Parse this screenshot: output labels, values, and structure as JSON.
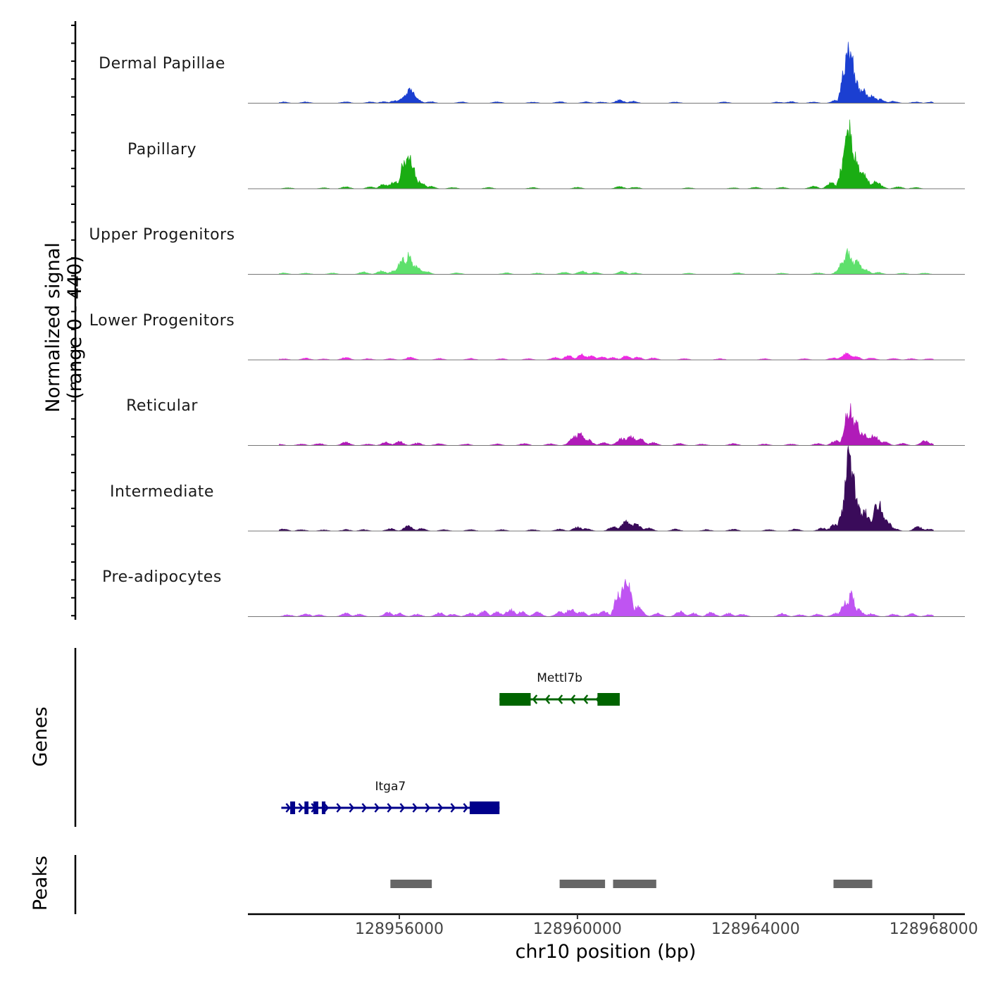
{
  "chart_data": {
    "type": "coverage",
    "region": {
      "chrom": "chr10",
      "start": 128952600,
      "end": 128968700
    },
    "y_axis_title_line1": "Normalized signal",
    "y_axis_title_line2": "(range 0 - 440)",
    "y_range": [
      0,
      440
    ],
    "x_axis_title": "chr10 position (bp)",
    "x_ticks": [
      128956000,
      128960000,
      128964000,
      128968000
    ],
    "x_tick_labels": [
      "128956000",
      "128960000",
      "128964000",
      "128968000"
    ],
    "tracks": [
      {
        "name": "Dermal Papillae",
        "color": "#1b3fd1",
        "peaks": [
          [
            128953400,
            5
          ],
          [
            128953900,
            5
          ],
          [
            128954800,
            6
          ],
          [
            128955350,
            5
          ],
          [
            128955650,
            6
          ],
          [
            128955900,
            10
          ],
          [
            128956050,
            16
          ],
          [
            128956200,
            38
          ],
          [
            128956250,
            55
          ],
          [
            128956400,
            15
          ],
          [
            128956700,
            6
          ],
          [
            128957400,
            5
          ],
          [
            128958200,
            6
          ],
          [
            128959000,
            5
          ],
          [
            128959600,
            6
          ],
          [
            128960200,
            6
          ],
          [
            128960550,
            5
          ],
          [
            128960950,
            14
          ],
          [
            128961250,
            8
          ],
          [
            128962200,
            5
          ],
          [
            128963300,
            5
          ],
          [
            128964500,
            5
          ],
          [
            128964800,
            6
          ],
          [
            128965300,
            5
          ],
          [
            128965800,
            12
          ],
          [
            128966000,
            160
          ],
          [
            128966080,
            260
          ],
          [
            128966150,
            200
          ],
          [
            128966250,
            110
          ],
          [
            128966400,
            55
          ],
          [
            128966600,
            30
          ],
          [
            128966800,
            16
          ],
          [
            128967100,
            8
          ],
          [
            128967600,
            5
          ],
          [
            128967950,
            5
          ]
        ]
      },
      {
        "name": "Papillary",
        "color": "#1aad13",
        "peaks": [
          [
            128953500,
            4
          ],
          [
            128954300,
            4
          ],
          [
            128954800,
            8
          ],
          [
            128955350,
            7
          ],
          [
            128955650,
            18
          ],
          [
            128955900,
            30
          ],
          [
            128956100,
            110
          ],
          [
            128956200,
            155
          ],
          [
            128956300,
            90
          ],
          [
            128956450,
            28
          ],
          [
            128956700,
            10
          ],
          [
            128957200,
            5
          ],
          [
            128958000,
            5
          ],
          [
            128959000,
            5
          ],
          [
            128960000,
            6
          ],
          [
            128960950,
            9
          ],
          [
            128961300,
            6
          ],
          [
            128962500,
            4
          ],
          [
            128963500,
            4
          ],
          [
            128964000,
            6
          ],
          [
            128964600,
            6
          ],
          [
            128965300,
            10
          ],
          [
            128965700,
            25
          ],
          [
            128965950,
            90
          ],
          [
            128966050,
            300
          ],
          [
            128966120,
            250
          ],
          [
            128966250,
            130
          ],
          [
            128966400,
            70
          ],
          [
            128966700,
            30
          ],
          [
            128967200,
            8
          ],
          [
            128967600,
            5
          ]
        ]
      },
      {
        "name": "Upper Progenitors",
        "color": "#5ee06c",
        "peaks": [
          [
            128953400,
            6
          ],
          [
            128953900,
            5
          ],
          [
            128954500,
            5
          ],
          [
            128955200,
            10
          ],
          [
            128955600,
            14
          ],
          [
            128955900,
            18
          ],
          [
            128956080,
            60
          ],
          [
            128956220,
            85
          ],
          [
            128956350,
            35
          ],
          [
            128956600,
            12
          ],
          [
            128957300,
            6
          ],
          [
            128958400,
            6
          ],
          [
            128959100,
            5
          ],
          [
            128959700,
            9
          ],
          [
            128960100,
            14
          ],
          [
            128960400,
            8
          ],
          [
            128961000,
            12
          ],
          [
            128961300,
            6
          ],
          [
            128962500,
            5
          ],
          [
            128963600,
            6
          ],
          [
            128964600,
            5
          ],
          [
            128965400,
            6
          ],
          [
            128966000,
            60
          ],
          [
            128966080,
            100
          ],
          [
            128966250,
            55
          ],
          [
            128966450,
            22
          ],
          [
            128966750,
            8
          ],
          [
            128967300,
            5
          ],
          [
            128967800,
            5
          ]
        ]
      },
      {
        "name": "Lower Progenitors",
        "color": "#ed2ae3",
        "peaks": [
          [
            128953400,
            5
          ],
          [
            128953900,
            7
          ],
          [
            128954300,
            4
          ],
          [
            128954800,
            10
          ],
          [
            128955300,
            5
          ],
          [
            128955800,
            5
          ],
          [
            128956250,
            11
          ],
          [
            128956900,
            6
          ],
          [
            128957600,
            6
          ],
          [
            128958300,
            5
          ],
          [
            128958900,
            5
          ],
          [
            128959500,
            10
          ],
          [
            128959800,
            17
          ],
          [
            128960100,
            22
          ],
          [
            128960300,
            18
          ],
          [
            128960550,
            12
          ],
          [
            128960800,
            10
          ],
          [
            128961100,
            17
          ],
          [
            128961350,
            12
          ],
          [
            128961700,
            8
          ],
          [
            128962400,
            5
          ],
          [
            128963200,
            5
          ],
          [
            128964200,
            5
          ],
          [
            128965100,
            5
          ],
          [
            128965750,
            8
          ],
          [
            128966050,
            26
          ],
          [
            128966250,
            14
          ],
          [
            128966600,
            8
          ],
          [
            128967100,
            6
          ],
          [
            128967500,
            5
          ],
          [
            128967900,
            5
          ]
        ]
      },
      {
        "name": "Reticular",
        "color": "#b01bb8",
        "peaks": [
          [
            128953300,
            5
          ],
          [
            128953800,
            6
          ],
          [
            128954200,
            8
          ],
          [
            128954800,
            14
          ],
          [
            128955300,
            6
          ],
          [
            128955700,
            14
          ],
          [
            128956000,
            16
          ],
          [
            128956400,
            10
          ],
          [
            128956900,
            8
          ],
          [
            128957500,
            6
          ],
          [
            128958200,
            6
          ],
          [
            128958800,
            8
          ],
          [
            128959400,
            7
          ],
          [
            128959950,
            35
          ],
          [
            128960050,
            48
          ],
          [
            128960200,
            28
          ],
          [
            128960600,
            12
          ],
          [
            128961000,
            28
          ],
          [
            128961200,
            36
          ],
          [
            128961400,
            26
          ],
          [
            128961700,
            12
          ],
          [
            128962300,
            8
          ],
          [
            128962800,
            6
          ],
          [
            128963500,
            8
          ],
          [
            128964200,
            6
          ],
          [
            128964800,
            6
          ],
          [
            128965400,
            8
          ],
          [
            128965800,
            20
          ],
          [
            128966050,
            130
          ],
          [
            128966120,
            160
          ],
          [
            128966250,
            110
          ],
          [
            128966400,
            50
          ],
          [
            128966650,
            40
          ],
          [
            128966900,
            16
          ],
          [
            128967300,
            8
          ],
          [
            128967800,
            20
          ],
          [
            128967950,
            8
          ]
        ]
      },
      {
        "name": "Intermediate",
        "color": "#3a0b5a",
        "peaks": [
          [
            128953400,
            8
          ],
          [
            128953800,
            6
          ],
          [
            128954300,
            5
          ],
          [
            128954800,
            6
          ],
          [
            128955200,
            6
          ],
          [
            128955800,
            10
          ],
          [
            128956200,
            22
          ],
          [
            128956500,
            10
          ],
          [
            128957000,
            6
          ],
          [
            128957600,
            6
          ],
          [
            128958300,
            6
          ],
          [
            128959000,
            6
          ],
          [
            128959600,
            8
          ],
          [
            128960000,
            16
          ],
          [
            128960200,
            10
          ],
          [
            128960800,
            18
          ],
          [
            128961100,
            42
          ],
          [
            128961300,
            30
          ],
          [
            128961600,
            12
          ],
          [
            128962200,
            8
          ],
          [
            128962900,
            6
          ],
          [
            128963500,
            8
          ],
          [
            128964300,
            6
          ],
          [
            128964900,
            8
          ],
          [
            128965500,
            12
          ],
          [
            128965800,
            28
          ],
          [
            128965950,
            90
          ],
          [
            128966050,
            230
          ],
          [
            128966100,
            335
          ],
          [
            128966170,
            270
          ],
          [
            128966300,
            120
          ],
          [
            128966450,
            80
          ],
          [
            128966600,
            40
          ],
          [
            128966700,
            95
          ],
          [
            128966800,
            110
          ],
          [
            128966900,
            55
          ],
          [
            128967100,
            12
          ],
          [
            128967650,
            18
          ],
          [
            128967900,
            8
          ]
        ]
      },
      {
        "name": "Pre-adipocytes",
        "color": "#bf54f2",
        "peaks": [
          [
            128953500,
            8
          ],
          [
            128953900,
            12
          ],
          [
            128954200,
            8
          ],
          [
            128954800,
            14
          ],
          [
            128955100,
            10
          ],
          [
            128955750,
            18
          ],
          [
            128956000,
            14
          ],
          [
            128956400,
            10
          ],
          [
            128956900,
            16
          ],
          [
            128957200,
            10
          ],
          [
            128957600,
            14
          ],
          [
            128957900,
            22
          ],
          [
            128958200,
            20
          ],
          [
            128958500,
            28
          ],
          [
            128958750,
            20
          ],
          [
            128959100,
            18
          ],
          [
            128959600,
            20
          ],
          [
            128959850,
            30
          ],
          [
            128960100,
            20
          ],
          [
            128960400,
            14
          ],
          [
            128960600,
            22
          ],
          [
            128960900,
            90
          ],
          [
            128961050,
            150
          ],
          [
            128961150,
            130
          ],
          [
            128961350,
            40
          ],
          [
            128961800,
            14
          ],
          [
            128962300,
            22
          ],
          [
            128962600,
            14
          ],
          [
            128963000,
            18
          ],
          [
            128963400,
            14
          ],
          [
            128963700,
            10
          ],
          [
            128964600,
            12
          ],
          [
            128965000,
            8
          ],
          [
            128965400,
            10
          ],
          [
            128965800,
            14
          ],
          [
            128966050,
            65
          ],
          [
            128966150,
            95
          ],
          [
            128966300,
            30
          ],
          [
            128966600,
            12
          ],
          [
            128967100,
            10
          ],
          [
            128967500,
            12
          ],
          [
            128967900,
            8
          ]
        ]
      }
    ],
    "genes": [
      {
        "name": "Mettl7b",
        "color": "#006400",
        "strand": "-",
        "start": 128958250,
        "end": 128960950,
        "exons": [
          [
            128958250,
            128958950
          ],
          [
            128960450,
            128960950
          ]
        ]
      },
      {
        "name": "Itga7",
        "color": "#00008b",
        "strand": "+",
        "start": 128953350,
        "end": 128958250,
        "exons": [
          [
            128953550,
            128953660
          ],
          [
            128953870,
            128953960
          ],
          [
            128954070,
            128954180
          ],
          [
            128954260,
            128954340
          ],
          [
            128957580,
            128958250
          ]
        ]
      }
    ],
    "peaks_track_label": "Peaks",
    "genes_track_label": "Genes",
    "peak_color": "#666666",
    "peak_regions": [
      [
        128955800,
        128956730
      ],
      [
        128959600,
        128960620
      ],
      [
        128960800,
        128961770
      ],
      [
        128965750,
        128966620
      ]
    ]
  }
}
